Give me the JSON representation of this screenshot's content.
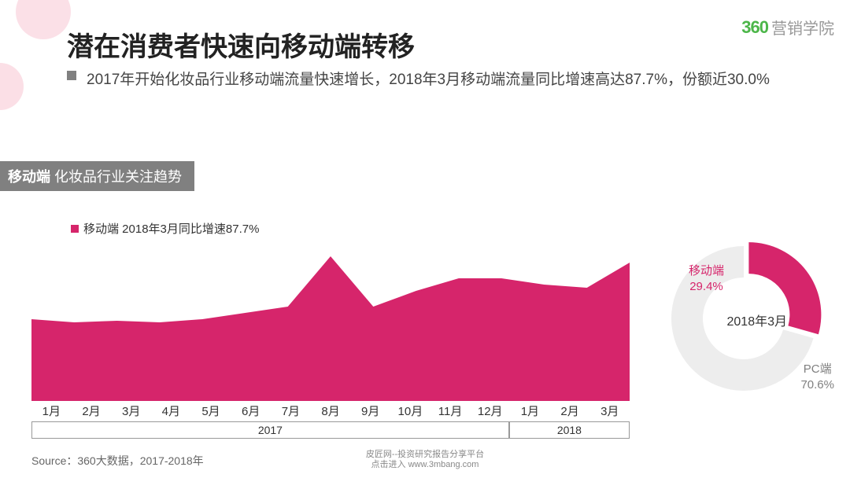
{
  "brand": {
    "logo_num": "360",
    "logo_text": "营销学院",
    "logo_color": "#4cb649",
    "logo_text_color": "#999999"
  },
  "title": "潜在消费者快速向移动端转移",
  "subtitle": "2017年开始化妆品行业移动端流量快速增长，2018年3月移动端流量同比增速高达87.7%，份额近30.0%",
  "section_tag_bold": "移动端",
  "section_tag_rest": " 化妆品行业关注趋势",
  "legend_text": "移动端 2018年3月同比增速87.7%",
  "area_chart": {
    "type": "area",
    "fill_color": "#d6256b",
    "background_color": "#ffffff",
    "x_labels": [
      "1月",
      "2月",
      "3月",
      "4月",
      "5月",
      "6月",
      "7月",
      "8月",
      "9月",
      "10月",
      "11月",
      "12月",
      "1月",
      "2月",
      "3月"
    ],
    "values": [
      52,
      50,
      51,
      50,
      52,
      56,
      60,
      92,
      60,
      70,
      78,
      78,
      74,
      72,
      88
    ],
    "ylim": [
      0,
      100
    ],
    "years": [
      {
        "label": "2017",
        "span": 12
      },
      {
        "label": "2018",
        "span": 3
      }
    ]
  },
  "donut": {
    "type": "donut",
    "center_label": "2018年3月",
    "inner_radius": 52,
    "outer_radius": 92,
    "slices": [
      {
        "label": "移动端",
        "value": 29.4,
        "color": "#d6256b",
        "label_color": "#d6256b",
        "pct_text": "29.4%"
      },
      {
        "label": "PC端",
        "value": 70.6,
        "color": "#ededed",
        "label_color": "#808080",
        "pct_text": "70.6%"
      }
    ]
  },
  "source": "Source：360大数据，2017-2018年",
  "footer": {
    "line1": "皮匠网--投资研究报告分享平台",
    "line2": "点击进入 www.3mbang.com"
  },
  "colors": {
    "accent": "#d6256b",
    "grey": "#808080",
    "text": "#333333",
    "light_pink": "#f9d3dd"
  }
}
